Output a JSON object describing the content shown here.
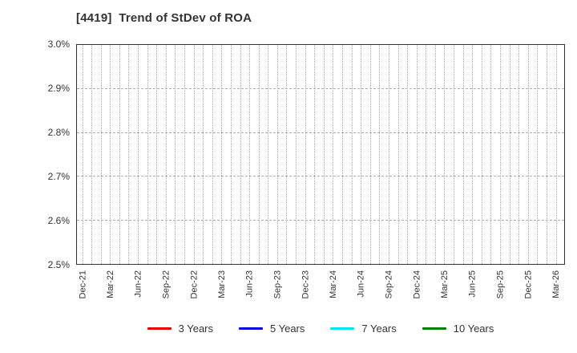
{
  "header": {
    "title": "[4419]  Trend of StDev of ROA"
  },
  "chart_data": {
    "type": "line",
    "title": "[4419]  Trend of StDev of ROA",
    "xlabel": "",
    "ylabel": "",
    "x_tick_labels": [
      "Dec-21",
      "Mar-22",
      "Jun-22",
      "Sep-22",
      "Dec-22",
      "Mar-23",
      "Jun-23",
      "Sep-23",
      "Dec-23",
      "Mar-24",
      "Jun-24",
      "Sep-24",
      "Dec-24",
      "Mar-25",
      "Jun-25",
      "Sep-25",
      "Dec-25",
      "Mar-26"
    ],
    "minor_vertical_gridlines": "monthly (every month between quarterly tick labels)",
    "y_tick_labels": [
      "3.0%",
      "2.9%",
      "2.8%",
      "2.7%",
      "2.6%",
      "2.5%"
    ],
    "ylim": [
      2.5,
      3.0
    ],
    "y_tick_step": 0.1,
    "grid": true,
    "legend_position": "bottom",
    "plot_empty": true,
    "series": [
      {
        "name": "3 Years",
        "color": "#e80000",
        "values": []
      },
      {
        "name": "5 Years",
        "color": "#0000dd",
        "values": []
      },
      {
        "name": "7 Years",
        "color": "#00e5ee",
        "values": []
      },
      {
        "name": "10 Years",
        "color": "#008000",
        "values": []
      }
    ]
  },
  "colors": {
    "background": "#ffffff",
    "title_text": "#333333",
    "tick_text": "#333333",
    "axis_frame": "#333333",
    "gridline": "#b0b0b0"
  }
}
